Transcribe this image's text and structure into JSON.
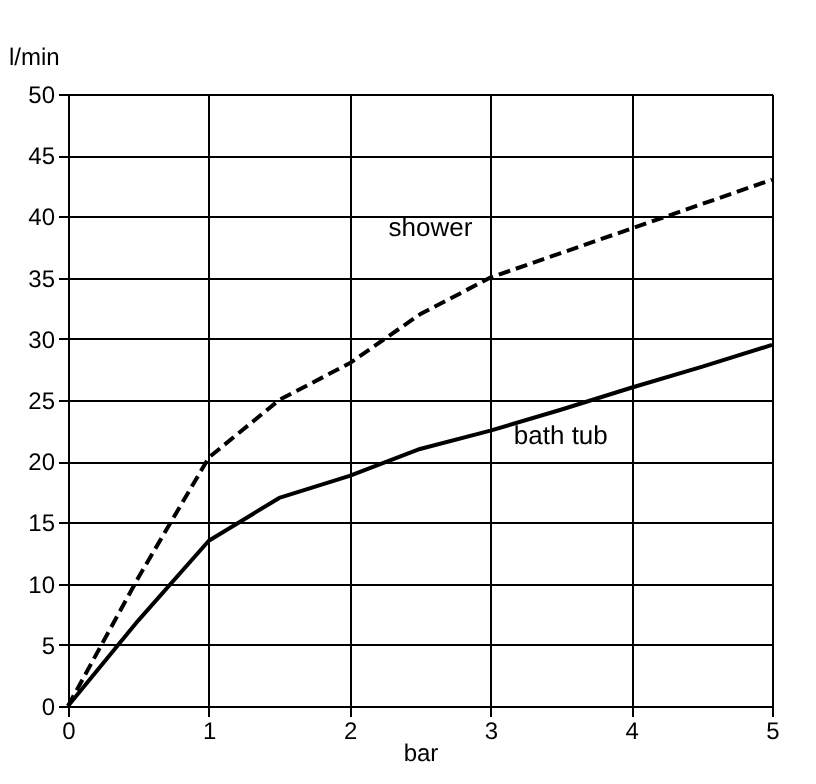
{
  "chart_data": {
    "type": "line",
    "xlabel": "bar",
    "ylabel": "l/min",
    "x": [
      0,
      0.5,
      1,
      1.5,
      2,
      2.5,
      3,
      3.5,
      4,
      4.5,
      5
    ],
    "series": [
      {
        "name": "shower",
        "color": "#000000",
        "line_style": "dashed",
        "values": [
          0,
          10.5,
          20.3,
          25,
          28,
          32,
          35,
          37,
          39,
          41,
          43
        ]
      },
      {
        "name": "bath tub",
        "color": "#000000",
        "line_style": "solid",
        "values": [
          0,
          7,
          13.5,
          17,
          18.8,
          21,
          22.5,
          24.2,
          26,
          27.7,
          29.5
        ]
      }
    ],
    "xlim": [
      0,
      5
    ],
    "ylim": [
      0,
      50
    ],
    "xticks": [
      0,
      1,
      2,
      3,
      4,
      5
    ],
    "yticks": [
      0,
      5,
      10,
      15,
      20,
      25,
      30,
      35,
      40,
      45,
      50
    ],
    "grid": true,
    "legend": false,
    "marker": "none"
  }
}
